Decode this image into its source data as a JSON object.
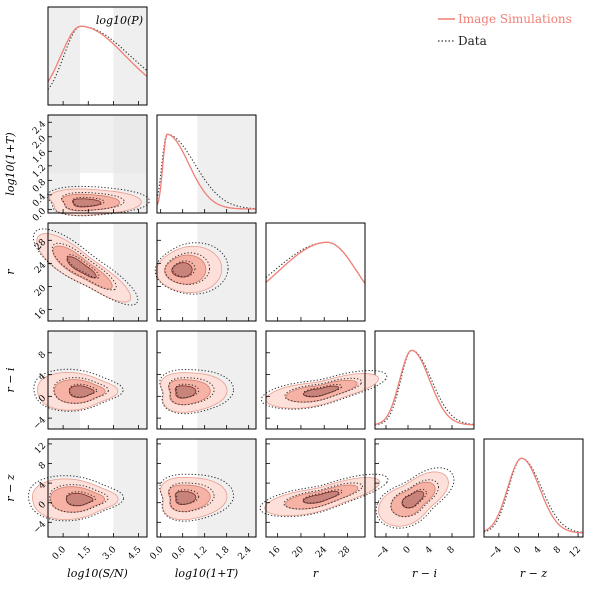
{
  "chart_data": {
    "type": "corner",
    "title": "",
    "diag_title": "log10(P)",
    "legend": {
      "position": "top-right",
      "entries": [
        {
          "label": "Image Simulations",
          "color": "#f07f76",
          "style": "solid"
        },
        {
          "label": "Data",
          "color": "#333333",
          "style": "dotted"
        }
      ]
    },
    "variables": [
      {
        "key": "sn",
        "label": "log10(S/N)",
        "range": [
          -0.9,
          5.0
        ],
        "ticks": [
          0.0,
          1.5,
          3.0,
          4.5
        ],
        "tick_labels": [
          "0.0",
          "1.5",
          "3.0",
          "4.5"
        ],
        "mode": 0.9,
        "sim_peak": 0.9,
        "data_peak": 0.9,
        "left_edge_sim": 0.05,
        "right_edge_sim": 0.1,
        "shade": [
          {
            "from": -0.9,
            "to": 1.0,
            "shade": "#efefef"
          },
          {
            "from": 3.0,
            "to": 5.0,
            "shade": "#efefef"
          }
        ]
      },
      {
        "key": "t",
        "label": "log10(1+T)",
        "range": [
          -0.1,
          2.6
        ],
        "ticks": [
          0.0,
          0.6,
          1.2,
          1.8,
          2.4
        ],
        "tick_labels": [
          "0.0",
          "0.6",
          "1.2",
          "1.8",
          "2.4"
        ],
        "y_ticks": [
          0.0,
          0.4,
          0.8,
          1.2,
          1.6,
          2.0,
          2.4
        ],
        "y_tick_labels": [
          "0.0",
          "0.4",
          "0.8",
          "1.2",
          "1.6",
          "2.0",
          "2.4"
        ],
        "mode": 0.15,
        "shade": [
          {
            "from": 1.0,
            "to": 2.6,
            "shade": "#efefef"
          }
        ]
      },
      {
        "key": "r",
        "label": "r",
        "range": [
          14,
          31
        ],
        "ticks": [
          16,
          20,
          24,
          28
        ],
        "tick_labels": [
          "16",
          "20",
          "24",
          "28"
        ],
        "mode": 24.3
      },
      {
        "key": "ri",
        "label": "r − i",
        "range": [
          -6,
          12
        ],
        "ticks": [
          -4,
          0,
          4,
          8
        ],
        "tick_labels": [
          "−4",
          "0",
          "4",
          "8"
        ],
        "mode": 0.6
      },
      {
        "key": "rz",
        "label": "r − z",
        "range": [
          -7,
          13
        ],
        "ticks": [
          -4,
          0,
          4,
          8,
          12
        ],
        "tick_labels": [
          "−4",
          "0",
          "4",
          "8",
          "12"
        ],
        "mode": 0.8
      }
    ]
  }
}
